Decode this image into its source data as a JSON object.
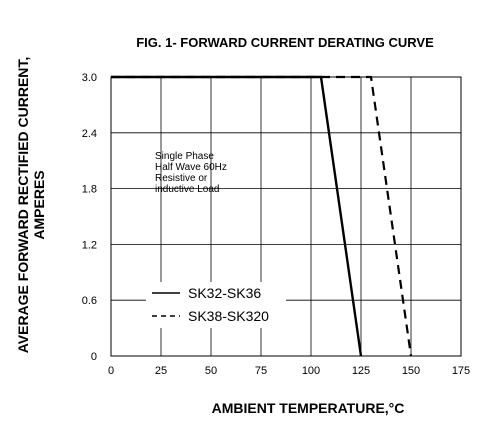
{
  "chart_data": {
    "type": "line",
    "title": "FIG. 1- FORWARD CURRENT DERATING CURVE",
    "xlabel": "AMBIENT TEMPERATURE,°C",
    "ylabel_lines": [
      "AVERAGE FORWARD RECTIFIED CURRENT,",
      "AMPERES"
    ],
    "xlim": [
      0,
      175
    ],
    "ylim": [
      0,
      3.0
    ],
    "x_ticks": [
      "0",
      "25",
      "50",
      "75",
      "100",
      "125",
      "150",
      "175"
    ],
    "y_ticks": [
      "0",
      "0.6",
      "1.2",
      "1.8",
      "2.4",
      "3.0"
    ],
    "grid": true,
    "annotation_lines": [
      "Single Phase",
      "Half Wave 60Hz",
      "Resistive or",
      "inductive Load"
    ],
    "series": [
      {
        "name": "SK32-SK36",
        "style": "solid",
        "x": [
          0,
          105,
          125
        ],
        "y": [
          3.0,
          3.0,
          0
        ]
      },
      {
        "name": "SK38-SK320",
        "style": "dashed",
        "x": [
          0,
          130,
          150
        ],
        "y": [
          3.0,
          3.0,
          0
        ]
      }
    ],
    "legend_position": "lower-left"
  }
}
